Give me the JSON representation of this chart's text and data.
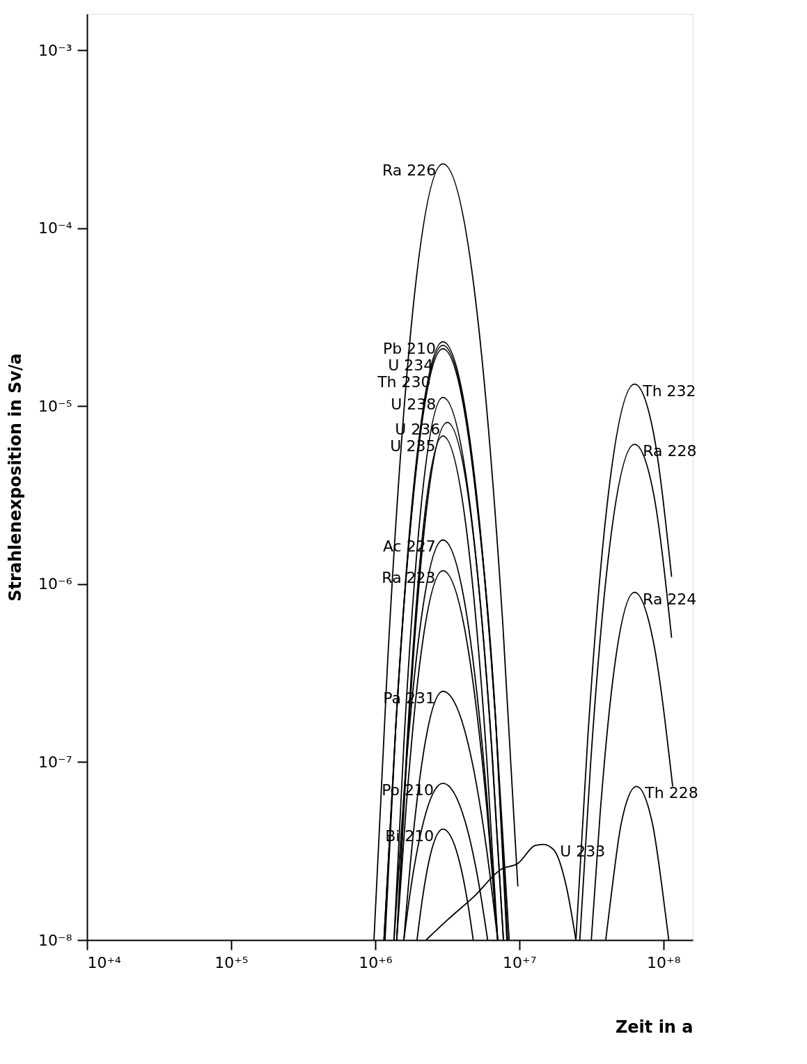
{
  "chart_data": {
    "type": "line",
    "xlabel": "Zeit in a",
    "ylabel": "Strahlenexposition in Sv/a",
    "log": "xy",
    "grid": false,
    "legend": false,
    "marker": "none",
    "line_style": "solid",
    "xlim": [
      10000,
      160000000
    ],
    "ylim": [
      1e-08,
      0.0016
    ],
    "xticks": [
      {
        "value": 10000,
        "label": "10⁺⁴"
      },
      {
        "value": 100000,
        "label": "10⁺⁵"
      },
      {
        "value": 1000000,
        "label": "10⁺⁶"
      },
      {
        "value": 10000000,
        "label": "10⁺⁷"
      },
      {
        "value": 100000000,
        "label": "10⁺⁸"
      }
    ],
    "yticks": [
      {
        "value": 1e-08,
        "label": "10⁻⁸"
      },
      {
        "value": 1e-07,
        "label": "10⁻⁷"
      },
      {
        "value": 1e-06,
        "label": "10⁻⁶"
      },
      {
        "value": 1e-05,
        "label": "10⁻⁵"
      },
      {
        "value": 0.0001,
        "label": "10⁻⁴"
      },
      {
        "value": 0.001,
        "label": "10⁻³"
      }
    ],
    "series": [
      {
        "name": "Ra 226",
        "color": "#000000",
        "x": [
          980000,
          1220000,
          1700000,
          2950000,
          5370000,
          7690000,
          9770000
        ],
        "values": [
          1e-08,
          3.7e-07,
          1.9e-05,
          0.00023,
          2.26e-05,
          5.9e-07,
          2e-08
        ]
      },
      {
        "name": "Pb 210",
        "color": "#000000",
        "x": [
          1150000,
          1390000,
          1840000,
          2950000,
          5010000,
          6890000,
          8510000
        ],
        "values": [
          1e-08,
          1.6e-07,
          3.4e-06,
          2.3e-05,
          3.4e-06,
          1.6e-07,
          1e-08
        ]
      },
      {
        "name": "U 234",
        "color": "#000000",
        "x": [
          1150000,
          1390000,
          1840000,
          2950000,
          5010000,
          6890000,
          8300000
        ],
        "values": [
          1e-08,
          1.6e-07,
          3.2e-06,
          2.2e-05,
          3.2e-06,
          1.6e-07,
          1e-08
        ]
      },
      {
        "name": "Th 230",
        "color": "#000000",
        "x": [
          1170000,
          1390000,
          1840000,
          2950000,
          5010000,
          6890000,
          8200000
        ],
        "values": [
          1e-08,
          1.6e-07,
          3.1e-06,
          2.1e-05,
          3.1e-06,
          1.6e-07,
          1e-08
        ]
      },
      {
        "name": "U 238",
        "color": "#000000",
        "x": [
          1350000,
          1580000,
          2000000,
          2950000,
          4790000,
          6400000,
          7760000
        ],
        "values": [
          1e-08,
          1.26e-07,
          1.95e-06,
          1.12e-05,
          1.95e-06,
          1.26e-07,
          1e-08
        ]
      },
      {
        "name": "U 236",
        "color": "#000000",
        "x": [
          1410000,
          1660000,
          2110000,
          3160000,
          4950000,
          6490000,
          7760000
        ],
        "values": [
          1e-08,
          1.1e-07,
          1.5e-06,
          8.1e-06,
          1.5e-06,
          1.1e-07,
          1e-08
        ]
      },
      {
        "name": "U 235",
        "color": "#000000",
        "x": [
          1410000,
          1640000,
          2040000,
          2950000,
          4570000,
          5940000,
          7080000
        ],
        "values": [
          1e-08,
          1.05e-07,
          1.32e-06,
          6.8e-06,
          1.32e-06,
          1.05e-07,
          1e-08
        ]
      },
      {
        "name": "Ac 227",
        "color": "#000000",
        "x": [
          1350000,
          1580000,
          2000000,
          2950000,
          4570000,
          5940000,
          7080000
        ],
        "values": [
          1e-08,
          6.5e-08,
          4.9e-07,
          1.77e-06,
          4.9e-07,
          6.5e-08,
          1e-08
        ]
      },
      {
        "name": "Ra 223",
        "color": "#000000",
        "x": [
          1410000,
          1640000,
          2040000,
          2950000,
          4570000,
          5940000,
          7080000
        ],
        "values": [
          1e-08,
          5.6e-08,
          3.6e-07,
          1.19e-06,
          3.6e-07,
          5.6e-08,
          1e-08
        ]
      },
      {
        "name": "Pa 231",
        "color": "#000000",
        "x": [
          1580000,
          1790000,
          2160000,
          2950000,
          4570000,
          5940000,
          7080000
        ],
        "values": [
          1e-08,
          3.2e-08,
          1.12e-07,
          2.5e-07,
          1.12e-07,
          3.2e-08,
          1e-08
        ]
      },
      {
        "name": "Po 210",
        "color": "#000000",
        "x": [
          1580000,
          1790000,
          2160000,
          2950000,
          4220000,
          5220000,
          6030000
        ],
        "values": [
          1e-08,
          2.1e-08,
          4.6e-08,
          7.6e-08,
          4.6e-08,
          2.1e-08,
          1e-08
        ]
      },
      {
        "name": "Bi 210",
        "color": "#000000",
        "x": [
          1950000,
          2120000,
          2400000,
          2950000,
          3760000,
          4350000,
          4790000
        ],
        "values": [
          1e-08,
          1.68e-08,
          2.95e-08,
          4.2e-08,
          2.95e-08,
          1.68e-08,
          1e-08
        ]
      },
      {
        "name": "U 233",
        "color": "#000000",
        "x": [
          2250000,
          3180000,
          4900000,
          7500000,
          9800000,
          12900000,
          14700000,
          17400000,
          21200000,
          24700000
        ],
        "values": [
          1e-08,
          1.3e-08,
          1.77e-08,
          2.5e-08,
          2.7e-08,
          3.4e-08,
          3.45e-08,
          3.2e-08,
          2e-08,
          1e-08
        ]
      },
      {
        "name": "Th 232",
        "color": "#000000",
        "x": [
          24700000,
          29800000,
          39400000,
          63000000,
          85000000,
          114000000
        ],
        "values": [
          1e-08,
          1.33e-07,
          2.2e-06,
          1.33e-05,
          7.2e-06,
          1.1e-06
        ]
      },
      {
        "name": "Ra 228",
        "color": "#000000",
        "x": [
          26300000,
          31300000,
          40700000,
          63000000,
          85000000,
          114000000
        ],
        "values": [
          1e-08,
          1e-07,
          1.23e-06,
          6.1e-06,
          3.3e-06,
          5e-07
        ]
      },
      {
        "name": "Ra 224",
        "color": "#000000",
        "x": [
          31600000,
          36300000,
          44700000,
          63000000,
          85000000,
          116000000
        ],
        "values": [
          1e-08,
          5e-08,
          2.95e-07,
          9e-07,
          4.8e-07,
          7.3e-08
        ]
      },
      {
        "name": "Th 228",
        "color": "#000000",
        "x": [
          39800000,
          44200000,
          50900000,
          65000000,
          84000000,
          97700000,
          109000000
        ],
        "values": [
          1e-08,
          2e-08,
          4.5e-08,
          7.3e-08,
          4.5e-08,
          2e-08,
          1e-08
        ]
      }
    ]
  }
}
